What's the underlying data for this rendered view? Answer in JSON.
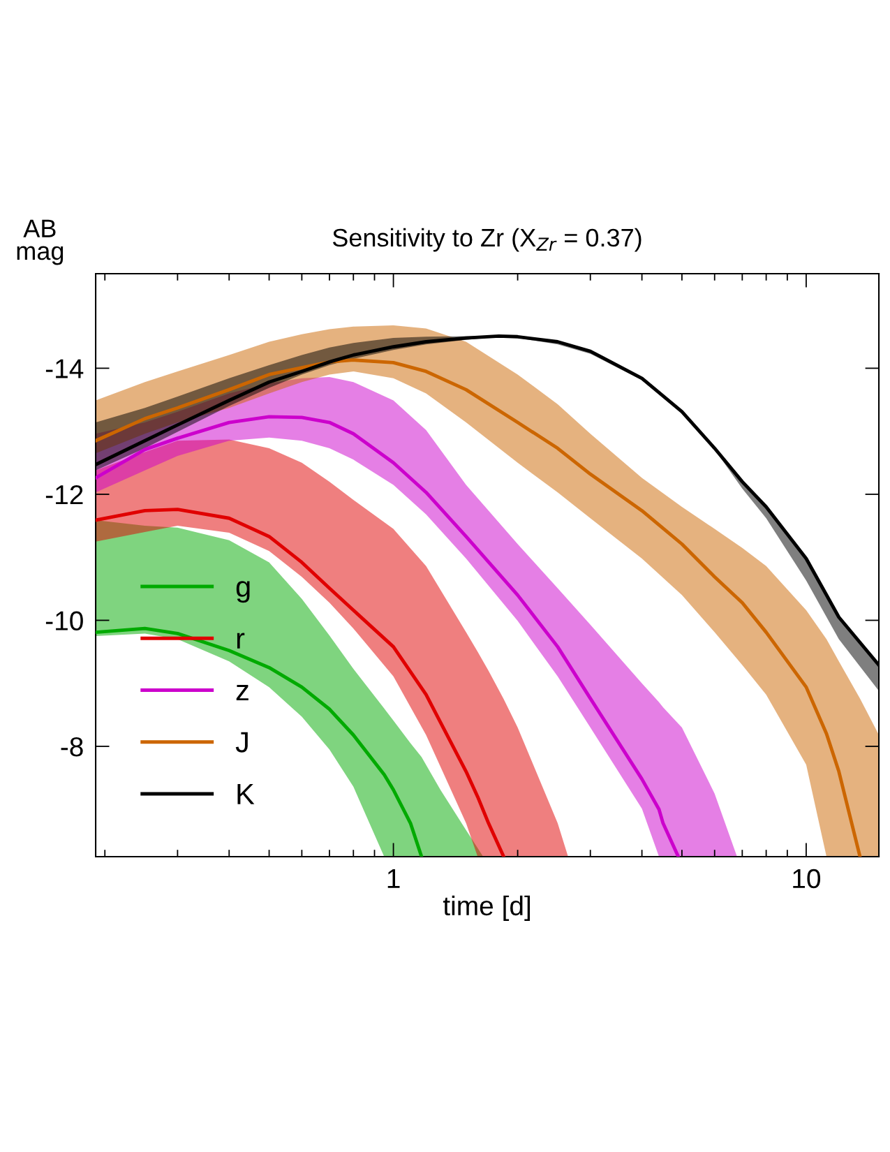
{
  "chart_data": {
    "type": "line",
    "title": "Sensitivity to Zr (X$_{Zr}$ = 0.37)",
    "xlabel": "time [d]",
    "ylabel": "AB\nmag",
    "log": "x",
    "xlim": [
      0.19,
      15
    ],
    "ylim": [
      -6.25,
      -15.5
    ],
    "xticks": [
      1,
      10
    ],
    "yticks": [
      -14,
      -12,
      -10,
      {
        "value": -8,
        "label": "-8"
      }
    ],
    "grid": false,
    "legend": "bottom left",
    "marker": "none",
    "line_style": "solid",
    "series": [
      {
        "name": "g",
        "color": "#00aa00",
        "x": [
          0.19,
          0.25,
          0.3,
          0.4,
          0.5,
          0.6,
          0.7,
          0.8,
          0.95,
          1.0,
          1.1,
          1.17,
          1.3,
          1.5,
          1.65
        ],
        "values": [
          -9.81,
          -9.87,
          -9.79,
          -9.52,
          -9.25,
          -8.94,
          -8.59,
          -8.18,
          -7.55,
          -7.31,
          -6.78,
          -6.25,
          null,
          null,
          null
        ],
        "upper": [
          -11.59,
          -11.5,
          -11.47,
          -11.27,
          -10.92,
          -10.34,
          -9.76,
          -9.23,
          -8.6,
          -8.41,
          -8.05,
          -7.83,
          -7.31,
          -6.67,
          -6.25
        ],
        "lower": [
          -9.75,
          -9.79,
          -9.7,
          -9.35,
          -8.94,
          -8.47,
          -7.95,
          -7.36,
          -6.25,
          -6.25,
          -6.25,
          -6.25,
          -6.25,
          -6.25,
          -6.25
        ]
      },
      {
        "name": "r",
        "color": "#e00000",
        "x": [
          0.19,
          0.25,
          0.3,
          0.4,
          0.5,
          0.6,
          0.7,
          0.8,
          1.0,
          1.2,
          1.5,
          1.6,
          1.7,
          1.85,
          2.0,
          2.5,
          2.65
        ],
        "values": [
          -11.59,
          -11.74,
          -11.76,
          -11.62,
          -11.33,
          -10.92,
          -10.51,
          -10.16,
          -9.58,
          -8.82,
          -7.6,
          -7.2,
          -6.78,
          -6.25,
          null,
          null,
          null
        ],
        "upper": [
          -12.38,
          -12.67,
          -12.85,
          -12.87,
          -12.73,
          -12.5,
          -12.2,
          -11.91,
          -11.45,
          -10.86,
          -9.81,
          -9.5,
          -9.2,
          -8.75,
          -8.3,
          -6.78,
          -6.25
        ],
        "lower": [
          -11.25,
          -11.4,
          -11.5,
          -11.39,
          -11.1,
          -10.69,
          -10.28,
          -9.87,
          -9.11,
          -8.18,
          -6.78,
          -6.25,
          -6.25,
          -6.25,
          -6.25,
          -6.25,
          -6.25
        ]
      },
      {
        "name": "z",
        "color": "#cc00cc",
        "x": [
          0.19,
          0.25,
          0.3,
          0.4,
          0.5,
          0.6,
          0.7,
          0.8,
          1.0,
          1.2,
          1.5,
          2.0,
          2.5,
          3.0,
          4.0,
          4.4,
          4.5,
          4.9,
          5.0,
          6.0,
          6.8
        ],
        "values": [
          -12.26,
          -12.71,
          -12.89,
          -13.14,
          -13.23,
          -13.22,
          -13.14,
          -12.96,
          -12.5,
          -12.03,
          -11.33,
          -10.4,
          -9.58,
          -8.76,
          -7.48,
          -7.0,
          -6.78,
          -6.25,
          null,
          null,
          null
        ],
        "upper": [
          -12.96,
          -13.14,
          -13.31,
          -13.6,
          -13.76,
          -13.84,
          -13.86,
          -13.78,
          -13.49,
          -13.02,
          -12.15,
          -11.21,
          -10.51,
          -9.93,
          -9.0,
          -8.7,
          -8.62,
          -8.36,
          -8.3,
          -7.25,
          -6.25
        ],
        "lower": [
          -12.03,
          -12.38,
          -12.61,
          -12.85,
          -12.9,
          -12.85,
          -12.73,
          -12.55,
          -12.15,
          -11.68,
          -10.98,
          -9.99,
          -9.11,
          -8.3,
          -7.01,
          -6.25,
          -6.25,
          -6.25,
          -6.25,
          -6.25,
          -6.25
        ]
      },
      {
        "name": "J",
        "color": "#cc6600",
        "x": [
          0.19,
          0.25,
          0.3,
          0.4,
          0.5,
          0.6,
          0.7,
          0.8,
          1.0,
          1.2,
          1.5,
          2.0,
          2.5,
          3.0,
          4.0,
          5.0,
          6.0,
          7.0,
          8.0,
          10,
          11.2,
          12,
          13.5,
          15
        ],
        "values": [
          -12.85,
          -13.2,
          -13.37,
          -13.66,
          -13.9,
          -14.01,
          -14.1,
          -14.13,
          -14.09,
          -13.95,
          -13.66,
          -13.14,
          -12.73,
          -12.32,
          -11.74,
          -11.21,
          -10.69,
          -10.28,
          -9.81,
          -8.94,
          -8.2,
          -7.6,
          -6.25,
          null
        ],
        "upper": [
          -13.49,
          -13.78,
          -13.95,
          -14.21,
          -14.42,
          -14.54,
          -14.62,
          -14.66,
          -14.68,
          -14.63,
          -14.42,
          -13.9,
          -13.43,
          -12.96,
          -12.26,
          -11.8,
          -11.45,
          -11.15,
          -10.86,
          -10.16,
          -9.7,
          -9.35,
          -8.76,
          -8.18
        ],
        "lower": [
          -12.65,
          -12.96,
          -13.14,
          -13.37,
          -13.6,
          -13.78,
          -13.9,
          -13.95,
          -13.84,
          -13.6,
          -13.14,
          -12.5,
          -12.03,
          -11.62,
          -10.98,
          -10.4,
          -9.81,
          -9.29,
          -8.82,
          -7.71,
          -6.25,
          -6.25,
          -6.25,
          -6.25
        ]
      },
      {
        "name": "K",
        "color": "#000000",
        "x": [
          0.19,
          0.25,
          0.3,
          0.4,
          0.5,
          0.6,
          0.7,
          0.8,
          1.0,
          1.2,
          1.5,
          1.8,
          2.0,
          2.5,
          3.0,
          4.0,
          5.0,
          6.0,
          7.0,
          8.0,
          10,
          12,
          15
        ],
        "values": [
          -12.47,
          -12.85,
          -13.1,
          -13.49,
          -13.78,
          -13.95,
          -14.1,
          -14.21,
          -14.34,
          -14.42,
          -14.48,
          -14.51,
          -14.5,
          -14.42,
          -14.27,
          -13.84,
          -13.31,
          -12.73,
          -12.2,
          -11.8,
          -10.98,
          -10.05,
          -9.29
        ],
        "upper": [
          -13.14,
          -13.37,
          -13.55,
          -13.84,
          -14.05,
          -14.21,
          -14.33,
          -14.4,
          -14.48,
          -14.5,
          -14.51,
          -14.51,
          -14.51,
          -14.44,
          -14.28,
          -13.85,
          -13.32,
          -12.73,
          -12.2,
          -11.8,
          -10.98,
          -10.05,
          -9.29
        ],
        "lower": [
          -12.38,
          -12.73,
          -12.99,
          -13.4,
          -13.69,
          -13.9,
          -14.05,
          -14.15,
          -14.29,
          -14.38,
          -14.45,
          -14.5,
          -14.48,
          -14.38,
          -14.23,
          -13.81,
          -13.29,
          -12.71,
          -12.09,
          -11.62,
          -10.63,
          -9.7,
          -8.88
        ]
      }
    ]
  }
}
